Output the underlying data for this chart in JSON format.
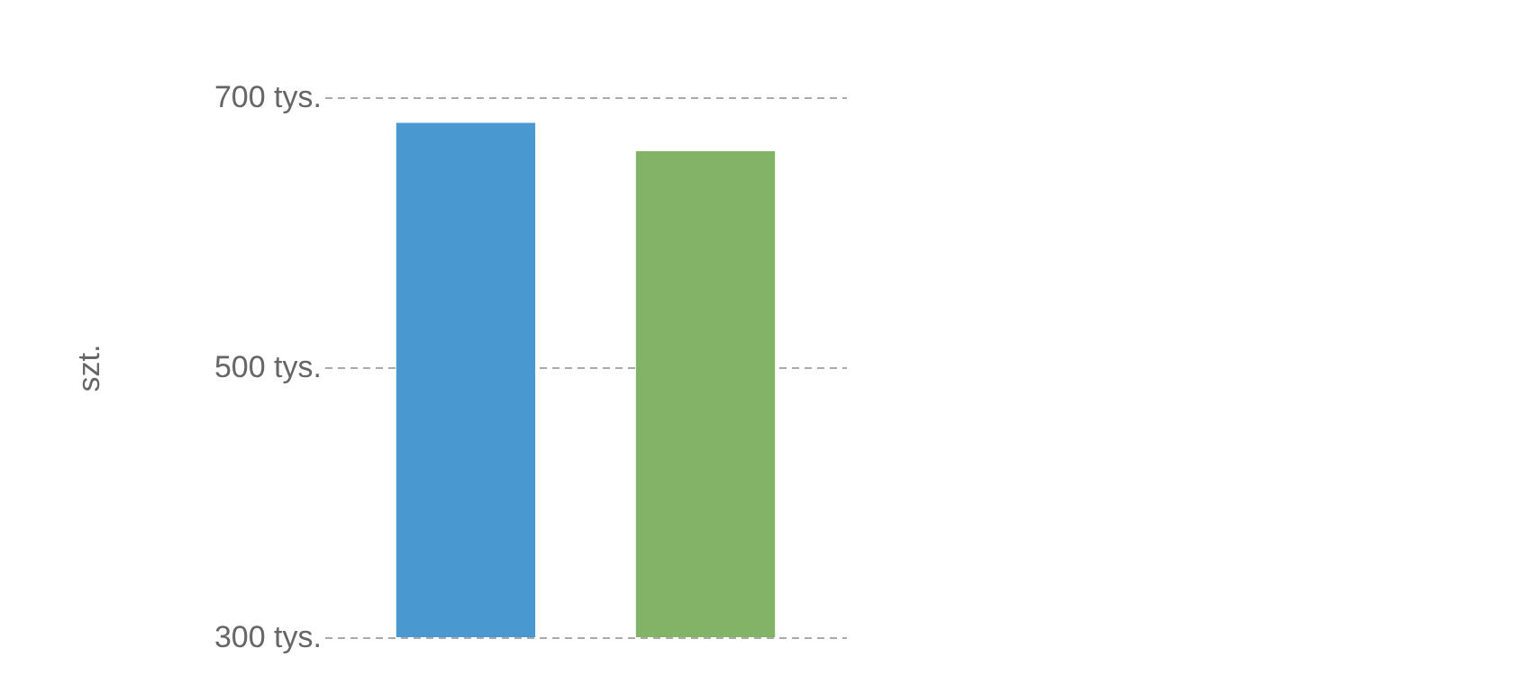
{
  "chart_data": {
    "type": "bar",
    "ylabel": "szt.",
    "categories": [
      null,
      null
    ],
    "values": [
      681,
      660
    ],
    "colors": [
      "#4a98d0",
      "#82b366"
    ],
    "ylim": [
      300,
      700
    ],
    "yticks": [
      {
        "value": 300,
        "label": "300 tys."
      },
      {
        "value": 500,
        "label": "500 tys."
      },
      {
        "value": 700,
        "label": "700 tys."
      }
    ],
    "grid": "y",
    "tick_labels": "y"
  }
}
